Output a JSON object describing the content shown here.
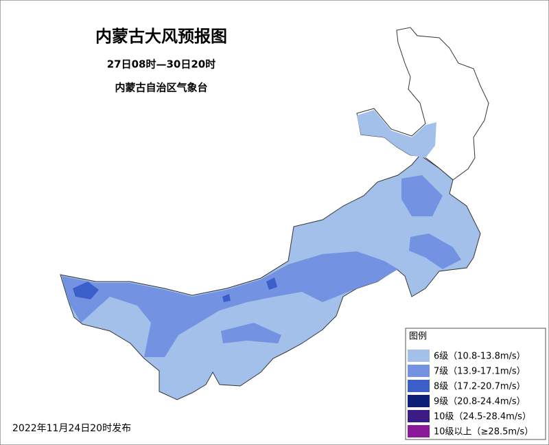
{
  "header": {
    "title": "内蒙古大风预报图",
    "period": "27日08时—30日20时",
    "issuer": "内蒙古自治区气象台"
  },
  "legend": {
    "title": "图例",
    "items": [
      {
        "label": "6级（10.8-13.8m/s）",
        "color": "#a3c0ea"
      },
      {
        "label": "7级（13.9-17.1m/s）",
        "color": "#7393e2"
      },
      {
        "label": "8级（17.2-20.7m/s）",
        "color": "#3a5fc8"
      },
      {
        "label": "9级（20.8-24.4m/s）",
        "color": "#0b1f77"
      },
      {
        "label": "10级（24.5-28.4m/s）",
        "color": "#3b1c86"
      },
      {
        "label": "10级以上（≥28.5m/s）",
        "color": "#8a1a98"
      }
    ]
  },
  "footer": {
    "issued": "2022年11月24日20时发布"
  }
}
